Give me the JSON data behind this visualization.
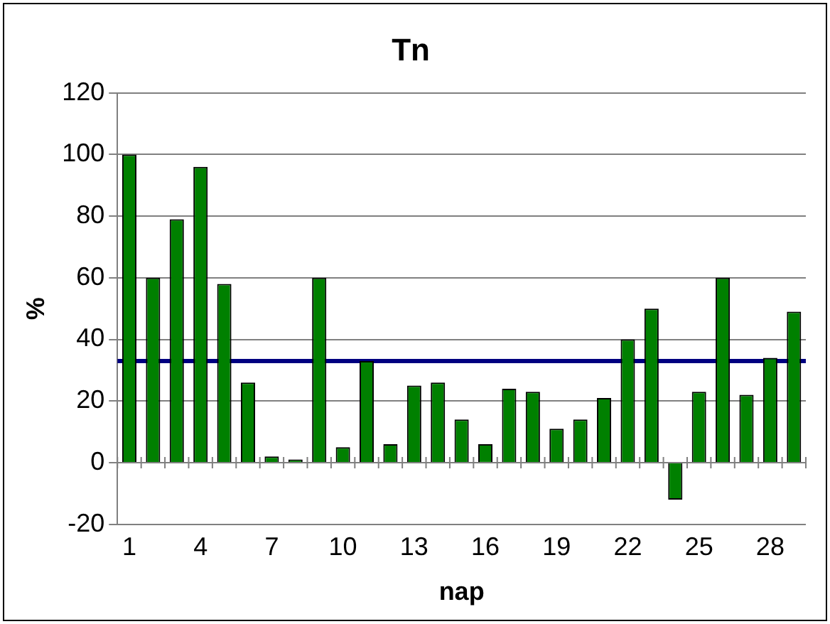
{
  "chart_data": {
    "type": "bar",
    "title": "Tn",
    "xlabel": "nap",
    "ylabel": "%",
    "categories": [
      "1",
      null,
      null,
      "4",
      null,
      null,
      "7",
      null,
      null,
      "10",
      null,
      null,
      "13",
      null,
      null,
      "16",
      null,
      null,
      "19",
      null,
      null,
      "22",
      null,
      null,
      "25",
      null,
      null,
      "28",
      null
    ],
    "values": [
      100,
      60,
      79,
      96,
      58,
      26,
      2,
      1,
      60,
      5,
      33,
      6,
      25,
      26,
      14,
      6,
      24,
      23,
      11,
      14,
      21,
      40,
      50,
      -12,
      23,
      60,
      22,
      34,
      49
    ],
    "color": "#008000",
    "ylim": [
      -20,
      120
    ],
    "yticks": [
      -20,
      0,
      20,
      40,
      60,
      80,
      100,
      120
    ],
    "grid": "y",
    "legend": false,
    "ref_lines": [
      {
        "axis": "y",
        "value": 33,
        "color": "#000080"
      }
    ]
  }
}
